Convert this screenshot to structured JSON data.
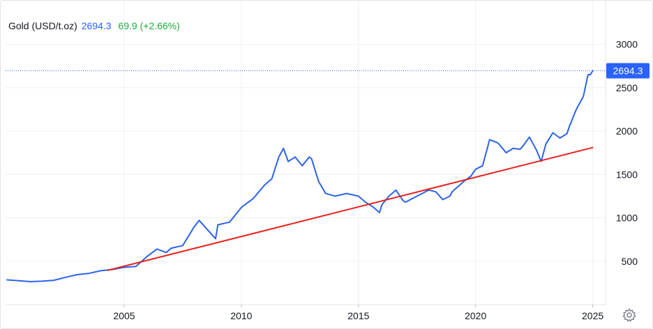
{
  "legend": {
    "symbol": "Gold (USD/t.oz)",
    "last": "2694.3",
    "change": "69.9 (+2.66%)"
  },
  "price_label": "2694.3",
  "colors": {
    "series": "#2a63e6",
    "trendline": "#e8201f",
    "grid": "#eef0f3",
    "text": "#131722",
    "price_tag": "#2962ff",
    "change_up": "#22ab3c"
  },
  "chart_data": {
    "type": "line",
    "title": "",
    "xlabel": "",
    "ylabel": "",
    "xlim": [
      2000.0,
      2025.1
    ],
    "ylim": [
      0,
      3300
    ],
    "y_ticks": [
      500,
      1000,
      1500,
      2000,
      2500,
      3000
    ],
    "x_ticks": [
      2005,
      2010,
      2015,
      2020,
      2025
    ],
    "grid": true,
    "y_axis_side": "right",
    "last_value": 2694.3,
    "series": [
      {
        "name": "Gold (USD/t.oz)",
        "x": [
          2000.0,
          2000.5,
          2001.0,
          2001.5,
          2002.0,
          2002.5,
          2003.0,
          2003.5,
          2004.0,
          2004.5,
          2005.0,
          2005.5,
          2006.0,
          2006.4,
          2006.8,
          2007.0,
          2007.5,
          2008.0,
          2008.2,
          2008.5,
          2008.9,
          2009.0,
          2009.5,
          2010.0,
          2010.5,
          2011.0,
          2011.3,
          2011.6,
          2011.8,
          2012.0,
          2012.3,
          2012.6,
          2012.9,
          2013.0,
          2013.3,
          2013.6,
          2014.0,
          2014.5,
          2015.0,
          2015.3,
          2015.6,
          2015.9,
          2016.0,
          2016.3,
          2016.6,
          2016.9,
          2017.0,
          2017.5,
          2018.0,
          2018.3,
          2018.6,
          2018.9,
          2019.0,
          2019.5,
          2019.8,
          2020.0,
          2020.3,
          2020.6,
          2020.9,
          2021.0,
          2021.3,
          2021.6,
          2021.9,
          2022.0,
          2022.3,
          2022.6,
          2022.8,
          2023.0,
          2023.3,
          2023.6,
          2023.9,
          2024.0,
          2024.3,
          2024.6,
          2024.8,
          2024.9,
          2025.0
        ],
        "y": [
          285,
          275,
          265,
          270,
          280,
          315,
          345,
          360,
          390,
          405,
          430,
          440,
          560,
          640,
          600,
          650,
          680,
          900,
          970,
          880,
          760,
          920,
          950,
          1120,
          1220,
          1380,
          1450,
          1700,
          1800,
          1650,
          1700,
          1600,
          1700,
          1680,
          1420,
          1280,
          1250,
          1280,
          1250,
          1180,
          1130,
          1060,
          1150,
          1250,
          1320,
          1200,
          1180,
          1250,
          1320,
          1300,
          1210,
          1250,
          1300,
          1420,
          1480,
          1560,
          1600,
          1900,
          1870,
          1850,
          1750,
          1800,
          1790,
          1820,
          1930,
          1780,
          1650,
          1850,
          1980,
          1920,
          1970,
          2050,
          2250,
          2400,
          2650,
          2650,
          2694.3
        ]
      },
      {
        "name": "",
        "x": [
          2004.3,
          2025.0
        ],
        "y": [
          395,
          1810
        ]
      }
    ]
  }
}
